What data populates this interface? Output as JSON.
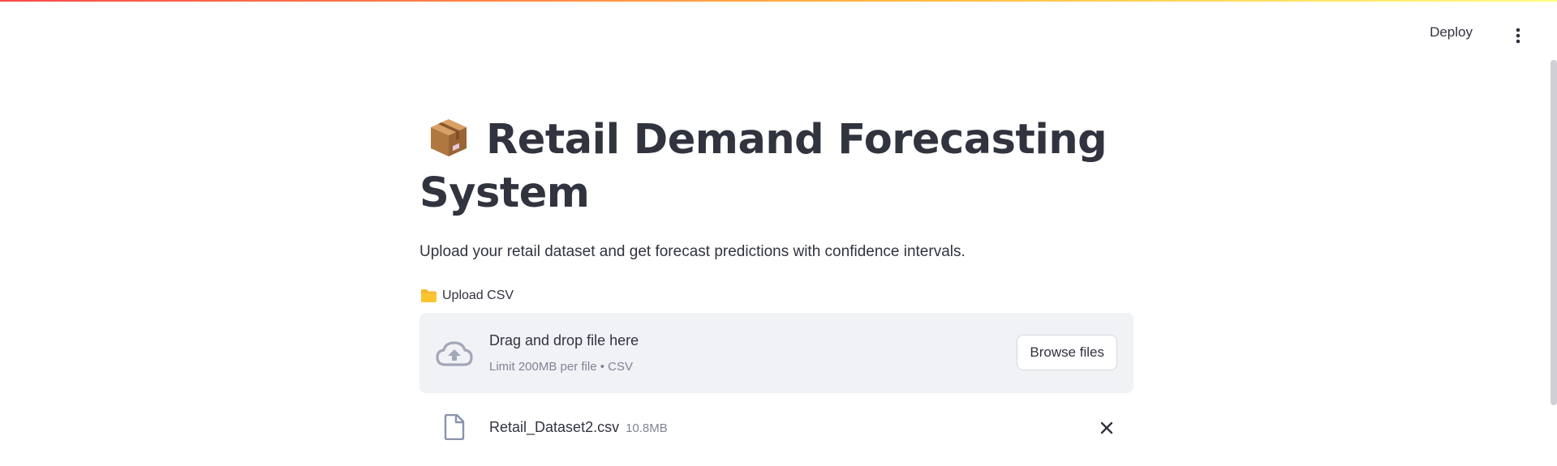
{
  "header": {
    "deploy_label": "Deploy",
    "menu_icon": "more-vertical-icon"
  },
  "main": {
    "title_emoji": "package-icon",
    "title": "Retail Demand Forecasting System",
    "subtitle": "Upload your retail dataset and get forecast predictions with confidence intervals."
  },
  "uploader": {
    "label_icon": "folder-icon",
    "label": "Upload CSV",
    "drop_text": "Drag and drop file here",
    "drop_hint": "Limit 200MB per file • CSV",
    "browse_label": "Browse files",
    "file": {
      "name": "Retail_Dataset2.csv",
      "size": "10.8MB"
    }
  },
  "colors": {
    "accent_red": "#ff4b4b",
    "gradient_end": "#fffd80",
    "dropzone_bg": "#f0f2f6",
    "muted_text": "#808495",
    "text": "#31333f"
  }
}
